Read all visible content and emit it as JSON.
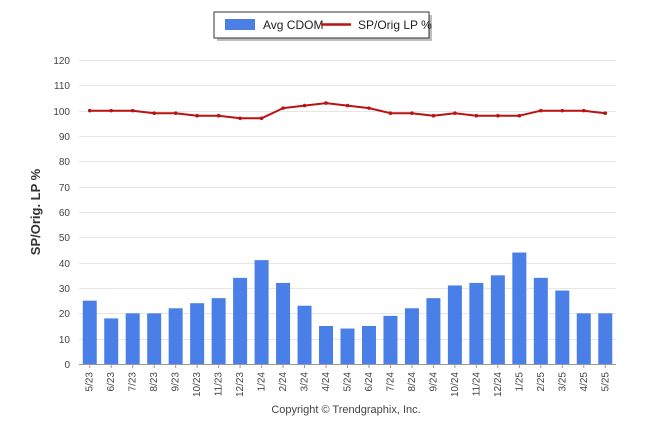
{
  "chart_data": {
    "type": "bar",
    "categories": [
      "5/23",
      "6/23",
      "7/23",
      "8/23",
      "9/23",
      "10/23",
      "11/23",
      "12/23",
      "1/24",
      "2/24",
      "3/24",
      "4/24",
      "5/24",
      "6/24",
      "7/24",
      "8/24",
      "9/24",
      "10/24",
      "11/24",
      "12/24",
      "1/25",
      "2/25",
      "3/25",
      "4/25",
      "5/25"
    ],
    "series": [
      {
        "name": "Avg CDOM",
        "type": "bar",
        "color": "#4a7fe8",
        "values": [
          25,
          18,
          20,
          20,
          22,
          24,
          26,
          34,
          41,
          32,
          23,
          15,
          14,
          15,
          19,
          22,
          26,
          31,
          32,
          35,
          44,
          34,
          29,
          20,
          20
        ]
      },
      {
        "name": "SP/Orig LP %",
        "type": "line",
        "color": "#b81414",
        "values": [
          100,
          100,
          100,
          99,
          99,
          98,
          98,
          97,
          97,
          101,
          102,
          103,
          102,
          101,
          99,
          99,
          98,
          99,
          98,
          98,
          98,
          100,
          100,
          100,
          99
        ]
      }
    ],
    "ylabel": "SP/Orig. LP %",
    "xlabel": "",
    "ylim": [
      0,
      120
    ],
    "yticks": [
      0,
      10,
      20,
      30,
      40,
      50,
      60,
      70,
      80,
      90,
      100,
      110,
      120
    ],
    "grid": true,
    "legend": "top-center"
  },
  "legend": {
    "bar_label": "Avg CDOM",
    "line_label": "SP/Orig LP %"
  },
  "footer": {
    "copyright": "Copyright © Trendgraphix, Inc."
  }
}
